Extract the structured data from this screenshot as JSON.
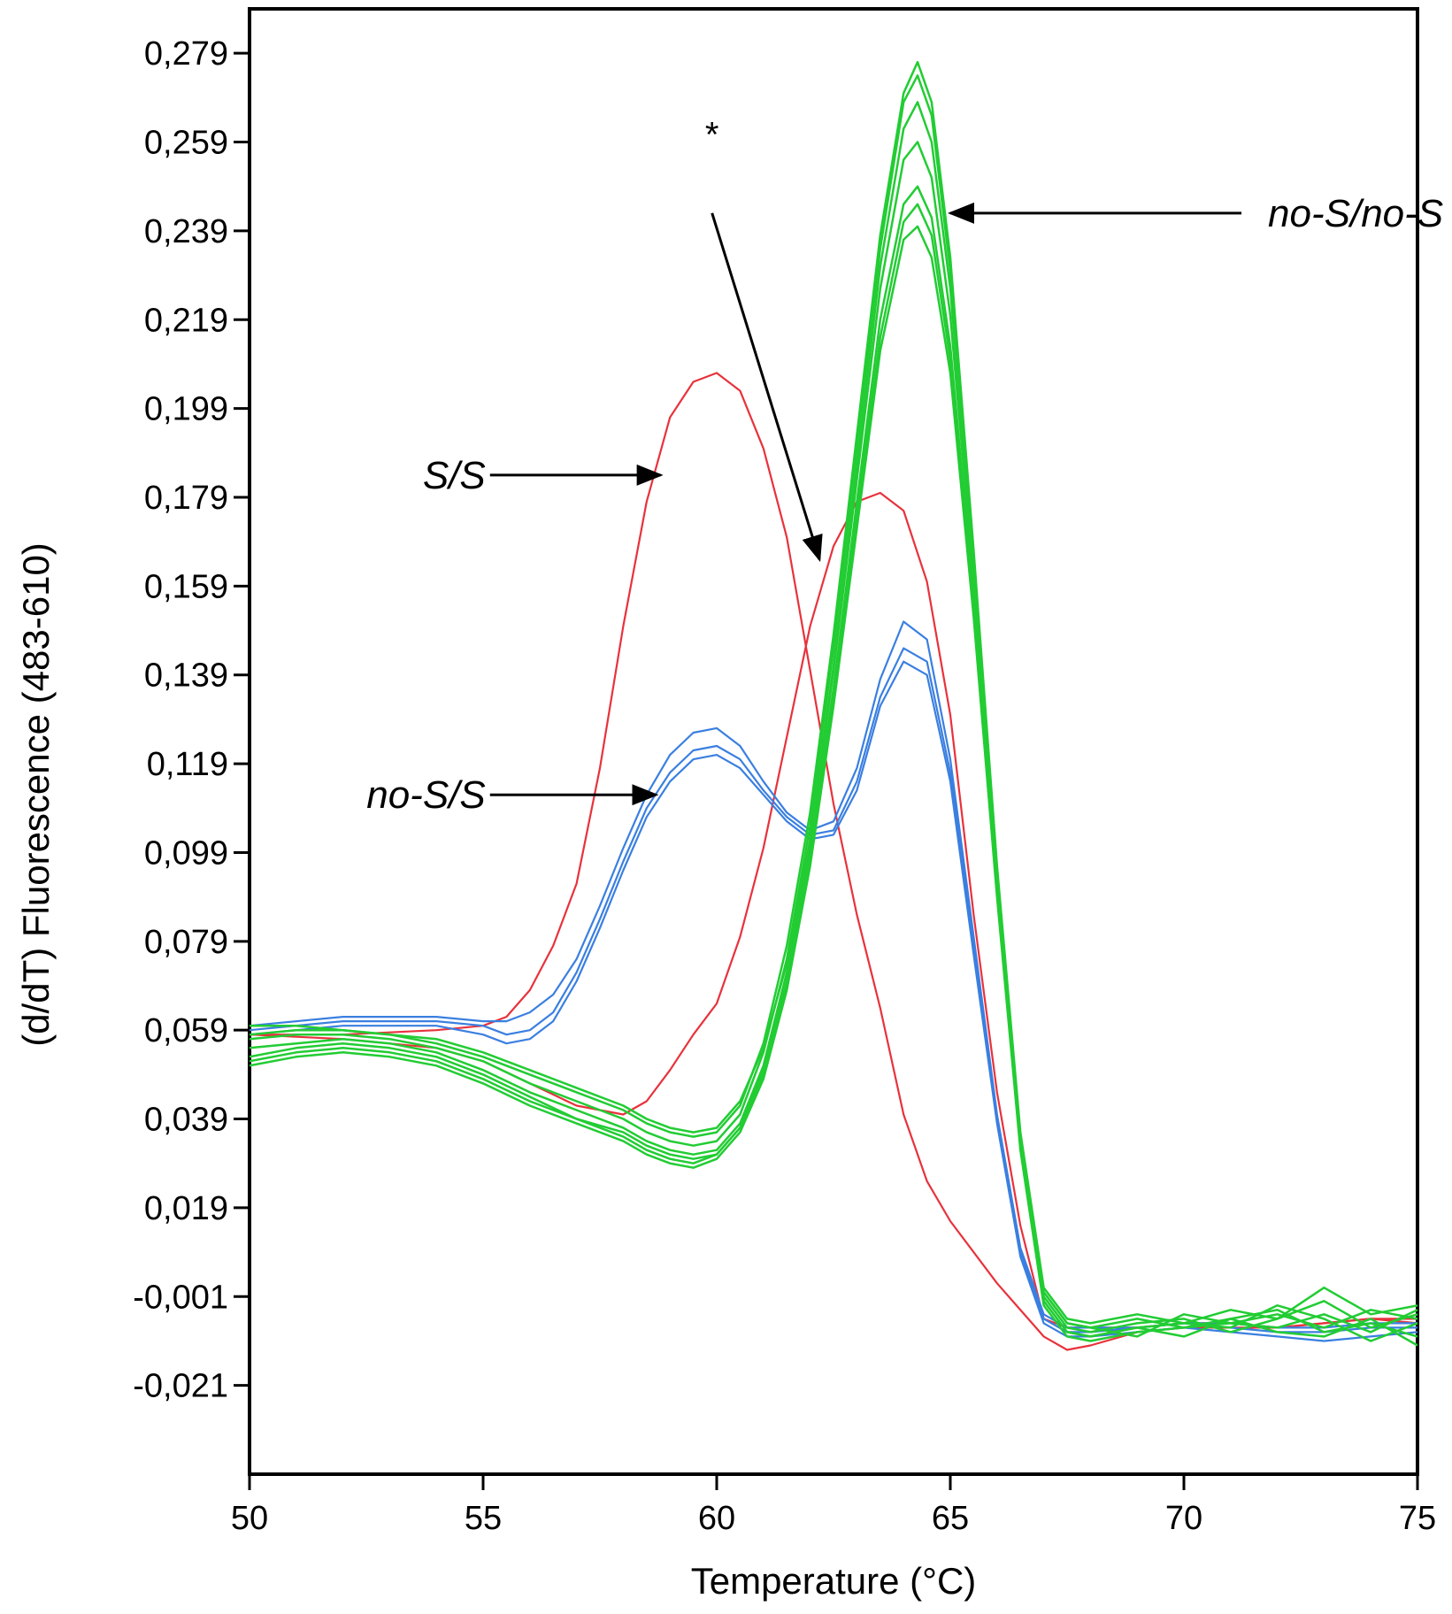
{
  "chart_data": {
    "type": "line",
    "title": "",
    "xlabel": "Temperature (°C)",
    "ylabel": "(d/dT) Fluorescence (483-610)",
    "xlim": [
      50,
      75
    ],
    "ylim": [
      -0.041,
      0.289
    ],
    "grid": false,
    "x_ticks": [
      50,
      55,
      60,
      65,
      70,
      75
    ],
    "x_tick_labels": [
      "50",
      "55",
      "60",
      "65",
      "70",
      "75"
    ],
    "y_ticks": [
      0.279,
      0.259,
      0.239,
      0.219,
      0.199,
      0.179,
      0.159,
      0.139,
      0.119,
      0.099,
      0.079,
      0.059,
      0.039,
      0.019,
      -0.001,
      -0.021
    ],
    "y_tick_labels": [
      "0,279",
      "0,259",
      "0,239",
      "0,219",
      "0,199",
      "0,179",
      "0,159",
      "0,139",
      "0,119",
      "0,099",
      "0,079",
      "0,059",
      "0,039",
      "0,019",
      "-0,001",
      "-0,021"
    ],
    "colors": {
      "red": "#e8323c",
      "blue": "#3a7fe0",
      "green": "#22cc33",
      "axis": "#000000"
    },
    "series": [
      {
        "color": "red",
        "x": [
          50,
          52,
          54,
          55,
          55.5,
          56,
          56.5,
          57,
          57.5,
          58,
          58.5,
          59,
          59.5,
          60,
          60.5,
          61,
          61.5,
          62,
          62.5,
          63,
          63.5,
          64,
          64.5,
          65,
          66,
          67,
          67.5,
          68,
          69,
          70,
          71,
          72,
          73,
          74,
          75
        ],
        "y": [
          0.058,
          0.058,
          0.059,
          0.06,
          0.062,
          0.068,
          0.078,
          0.092,
          0.118,
          0.15,
          0.178,
          0.197,
          0.205,
          0.207,
          0.203,
          0.19,
          0.17,
          0.14,
          0.11,
          0.085,
          0.064,
          0.04,
          0.025,
          0.016,
          0.002,
          -0.01,
          -0.013,
          -0.012,
          -0.009,
          -0.008,
          -0.008,
          -0.008,
          -0.007,
          -0.006,
          -0.006
        ]
      },
      {
        "color": "red",
        "x": [
          50,
          52,
          54,
          55,
          56,
          57,
          58,
          58.5,
          59,
          59.5,
          60,
          60.5,
          61,
          61.5,
          62,
          62.5,
          63,
          63.5,
          64,
          64.5,
          65,
          65.5,
          66,
          66.5,
          67,
          67.5,
          68,
          69,
          70,
          71,
          72,
          73,
          74,
          75
        ],
        "y": [
          0.058,
          0.057,
          0.055,
          0.052,
          0.047,
          0.042,
          0.04,
          0.043,
          0.05,
          0.058,
          0.065,
          0.08,
          0.1,
          0.125,
          0.15,
          0.168,
          0.178,
          0.18,
          0.176,
          0.16,
          0.13,
          0.085,
          0.045,
          0.015,
          -0.006,
          -0.008,
          -0.008,
          -0.008,
          -0.007,
          -0.007,
          -0.008,
          -0.007,
          -0.006,
          -0.007
        ]
      },
      {
        "color": "blue",
        "x": [
          50,
          52,
          54,
          55,
          55.5,
          56,
          56.5,
          57,
          57.5,
          58,
          58.5,
          59,
          59.5,
          60,
          60.5,
          61,
          61.5,
          62,
          62.5,
          63,
          63.5,
          64,
          64.5,
          65,
          65.5,
          66,
          66.5,
          67,
          67.5,
          68,
          69,
          70,
          71,
          72,
          73,
          74,
          75
        ],
        "y": [
          0.06,
          0.062,
          0.062,
          0.061,
          0.061,
          0.063,
          0.067,
          0.075,
          0.087,
          0.1,
          0.112,
          0.121,
          0.126,
          0.127,
          0.123,
          0.115,
          0.108,
          0.104,
          0.106,
          0.118,
          0.138,
          0.151,
          0.147,
          0.12,
          0.08,
          0.04,
          0.01,
          -0.005,
          -0.008,
          -0.008,
          -0.008,
          -0.007,
          -0.007,
          -0.008,
          -0.008,
          -0.007,
          -0.007
        ]
      },
      {
        "color": "blue",
        "x": [
          50,
          52,
          54,
          55,
          55.5,
          56,
          56.5,
          57,
          57.5,
          58,
          58.5,
          59,
          59.5,
          60,
          60.5,
          61,
          61.5,
          62,
          62.5,
          63,
          63.5,
          64,
          64.5,
          65,
          65.5,
          66,
          66.5,
          67,
          67.5,
          68,
          69,
          70,
          71,
          72,
          73,
          74,
          75
        ],
        "y": [
          0.059,
          0.061,
          0.061,
          0.06,
          0.058,
          0.059,
          0.063,
          0.072,
          0.084,
          0.097,
          0.109,
          0.117,
          0.122,
          0.123,
          0.12,
          0.113,
          0.107,
          0.103,
          0.104,
          0.115,
          0.134,
          0.145,
          0.142,
          0.117,
          0.078,
          0.039,
          0.009,
          -0.006,
          -0.009,
          -0.009,
          -0.008,
          -0.007,
          -0.008,
          -0.009,
          -0.009,
          -0.008,
          -0.008
        ]
      },
      {
        "color": "blue",
        "x": [
          50,
          52,
          54,
          55,
          55.5,
          56,
          56.5,
          57,
          57.5,
          58,
          58.5,
          59,
          59.5,
          60,
          60.5,
          61,
          61.5,
          62,
          62.5,
          63,
          63.5,
          64,
          64.5,
          65,
          65.5,
          66,
          66.5,
          67,
          67.5,
          68,
          69,
          70,
          71,
          72,
          73,
          74,
          75
        ],
        "y": [
          0.058,
          0.06,
          0.06,
          0.058,
          0.056,
          0.057,
          0.061,
          0.07,
          0.082,
          0.095,
          0.107,
          0.115,
          0.12,
          0.121,
          0.118,
          0.112,
          0.106,
          0.102,
          0.103,
          0.113,
          0.132,
          0.142,
          0.139,
          0.115,
          0.076,
          0.038,
          0.008,
          -0.007,
          -0.01,
          -0.01,
          -0.009,
          -0.008,
          -0.009,
          -0.01,
          -0.011,
          -0.01,
          -0.009
        ]
      },
      {
        "color": "green",
        "x": [
          50,
          51,
          52,
          53,
          54,
          55,
          56,
          57,
          58,
          58.5,
          59,
          59.5,
          60,
          60.5,
          61,
          61.5,
          62,
          62.5,
          63,
          63.5,
          64,
          64.3,
          64.6,
          65,
          65.5,
          66,
          66.5,
          67,
          67.5,
          68,
          69,
          70,
          71,
          72,
          73,
          74,
          75
        ],
        "y": [
          0.057,
          0.058,
          0.058,
          0.057,
          0.055,
          0.052,
          0.047,
          0.043,
          0.039,
          0.036,
          0.034,
          0.033,
          0.034,
          0.04,
          0.054,
          0.075,
          0.105,
          0.145,
          0.19,
          0.235,
          0.268,
          0.274,
          0.265,
          0.23,
          0.165,
          0.095,
          0.035,
          0.0,
          -0.007,
          -0.008,
          -0.006,
          -0.008,
          -0.007,
          -0.005,
          -0.008,
          -0.004,
          -0.006
        ]
      },
      {
        "color": "green",
        "x": [
          50,
          51,
          52,
          53,
          54,
          55,
          56,
          57,
          58,
          58.5,
          59,
          59.5,
          60,
          60.5,
          61,
          61.5,
          62,
          62.5,
          63,
          63.5,
          64,
          64.3,
          64.6,
          65,
          65.5,
          66,
          66.5,
          67,
          67.5,
          68,
          69,
          70,
          71,
          72,
          73,
          74,
          75
        ],
        "y": [
          0.055,
          0.056,
          0.057,
          0.056,
          0.054,
          0.05,
          0.045,
          0.041,
          0.037,
          0.034,
          0.032,
          0.031,
          0.032,
          0.038,
          0.051,
          0.072,
          0.101,
          0.14,
          0.183,
          0.226,
          0.255,
          0.259,
          0.251,
          0.22,
          0.16,
          0.093,
          0.034,
          -0.001,
          -0.008,
          -0.009,
          -0.007,
          -0.006,
          -0.009,
          -0.006,
          -0.002,
          -0.008,
          -0.005
        ]
      },
      {
        "color": "green",
        "x": [
          50,
          51,
          52,
          53,
          54,
          55,
          56,
          57,
          58,
          58.5,
          59,
          59.5,
          60,
          60.5,
          61,
          61.5,
          62,
          62.5,
          63,
          63.5,
          64,
          64.3,
          64.6,
          65,
          65.5,
          66,
          66.5,
          67,
          67.5,
          68,
          69,
          70,
          71,
          72,
          73,
          74,
          75
        ],
        "y": [
          0.053,
          0.055,
          0.056,
          0.055,
          0.053,
          0.049,
          0.044,
          0.039,
          0.035,
          0.032,
          0.03,
          0.029,
          0.031,
          0.037,
          0.05,
          0.07,
          0.099,
          0.136,
          0.178,
          0.219,
          0.245,
          0.249,
          0.242,
          0.213,
          0.156,
          0.091,
          0.033,
          -0.002,
          -0.009,
          -0.01,
          -0.008,
          -0.007,
          -0.008,
          -0.003,
          -0.006,
          -0.011,
          -0.007
        ]
      },
      {
        "color": "green",
        "x": [
          50,
          51,
          52,
          53,
          54,
          55,
          56,
          57,
          58,
          58.5,
          59,
          59.5,
          60,
          60.5,
          61,
          61.5,
          62,
          62.5,
          63,
          63.5,
          64,
          64.3,
          64.6,
          65,
          65.5,
          66,
          66.5,
          67,
          67.5,
          68,
          69,
          70,
          71,
          72,
          73,
          74,
          75
        ],
        "y": [
          0.051,
          0.053,
          0.054,
          0.053,
          0.051,
          0.047,
          0.042,
          0.038,
          0.034,
          0.031,
          0.029,
          0.028,
          0.03,
          0.036,
          0.048,
          0.068,
          0.096,
          0.132,
          0.172,
          0.212,
          0.237,
          0.24,
          0.233,
          0.207,
          0.152,
          0.089,
          0.032,
          -0.003,
          -0.01,
          -0.011,
          -0.009,
          -0.008,
          -0.006,
          -0.009,
          -0.01,
          -0.006,
          -0.012
        ]
      },
      {
        "color": "green",
        "x": [
          50,
          51,
          52,
          53,
          54,
          55,
          56,
          57,
          58,
          58.5,
          59,
          59.5,
          60,
          60.5,
          61,
          61.5,
          62,
          62.5,
          63,
          63.5,
          64,
          64.3,
          64.6,
          65,
          65.5,
          66,
          66.5,
          67,
          67.5,
          68,
          69,
          70,
          71,
          72,
          73,
          74,
          75
        ],
        "y": [
          0.06,
          0.06,
          0.059,
          0.058,
          0.056,
          0.053,
          0.049,
          0.045,
          0.041,
          0.038,
          0.036,
          0.035,
          0.036,
          0.042,
          0.056,
          0.078,
          0.108,
          0.148,
          0.193,
          0.238,
          0.27,
          0.277,
          0.268,
          0.233,
          0.167,
          0.096,
          0.036,
          0.001,
          -0.006,
          -0.007,
          -0.005,
          -0.007,
          -0.004,
          -0.006,
          0.001,
          -0.005,
          -0.003
        ]
      },
      {
        "color": "green",
        "x": [
          50,
          51,
          52,
          53,
          54,
          55,
          56,
          57,
          58,
          58.5,
          59,
          59.5,
          60,
          60.5,
          61,
          61.5,
          62,
          62.5,
          63,
          63.5,
          64,
          64.3,
          64.6,
          65,
          65.5,
          66,
          66.5,
          67,
          67.5,
          68,
          69,
          70,
          71,
          72,
          73,
          74,
          75
        ],
        "y": [
          0.058,
          0.059,
          0.059,
          0.058,
          0.057,
          0.054,
          0.05,
          0.046,
          0.042,
          0.039,
          0.037,
          0.036,
          0.037,
          0.043,
          0.055,
          0.074,
          0.102,
          0.141,
          0.186,
          0.231,
          0.262,
          0.268,
          0.259,
          0.226,
          0.163,
          0.094,
          0.035,
          0.0,
          -0.007,
          -0.008,
          -0.01,
          -0.005,
          -0.007,
          -0.008,
          -0.005,
          -0.009,
          -0.004
        ]
      },
      {
        "color": "green",
        "x": [
          50,
          51,
          52,
          53,
          54,
          55,
          56,
          57,
          58,
          58.5,
          59,
          59.5,
          60,
          60.5,
          61,
          61.5,
          62,
          62.5,
          63,
          63.5,
          64,
          64.3,
          64.6,
          65,
          65.5,
          66,
          66.5,
          67,
          67.5,
          68,
          69,
          70,
          71,
          72,
          73,
          74,
          75
        ],
        "y": [
          0.052,
          0.054,
          0.055,
          0.054,
          0.052,
          0.048,
          0.043,
          0.039,
          0.036,
          0.033,
          0.031,
          0.03,
          0.031,
          0.037,
          0.049,
          0.069,
          0.098,
          0.134,
          0.175,
          0.215,
          0.241,
          0.245,
          0.238,
          0.21,
          0.154,
          0.09,
          0.033,
          -0.002,
          -0.009,
          -0.01,
          -0.008,
          -0.01,
          -0.006,
          -0.004,
          -0.009,
          -0.007,
          -0.01
        ]
      }
    ],
    "annotations": [
      {
        "text": "no-S/no-S",
        "x": 71.8,
        "y": 0.243,
        "arrow_tip": [
          65,
          0.243
        ]
      },
      {
        "text": "S/S",
        "x": 54.2,
        "y": 0.184,
        "arrow_tip": [
          58.8,
          0.184
        ]
      },
      {
        "text": "no-S/S",
        "x": 54.2,
        "y": 0.112,
        "arrow_tip": [
          58.7,
          0.112
        ]
      },
      {
        "text": "*",
        "x": 59.9,
        "y": 0.258,
        "arrow_from": [
          59.9,
          0.243
        ],
        "arrow_tip": [
          62.2,
          0.165
        ]
      }
    ]
  }
}
